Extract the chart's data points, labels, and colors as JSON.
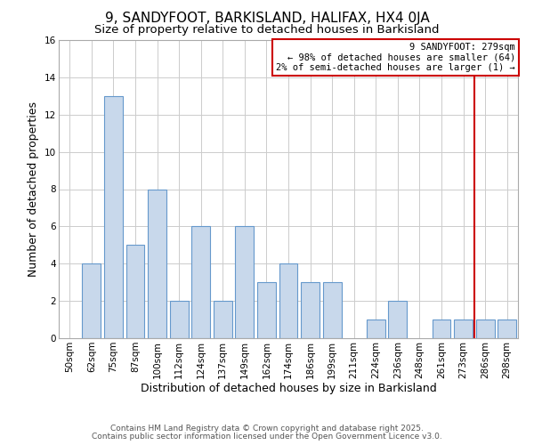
{
  "title": "9, SANDYFOOT, BARKISLAND, HALIFAX, HX4 0JA",
  "subtitle": "Size of property relative to detached houses in Barkisland",
  "xlabel": "Distribution of detached houses by size in Barkisland",
  "ylabel": "Number of detached properties",
  "bin_labels": [
    "50sqm",
    "62sqm",
    "75sqm",
    "87sqm",
    "100sqm",
    "112sqm",
    "124sqm",
    "137sqm",
    "149sqm",
    "162sqm",
    "174sqm",
    "186sqm",
    "199sqm",
    "211sqm",
    "224sqm",
    "236sqm",
    "248sqm",
    "261sqm",
    "273sqm",
    "286sqm",
    "298sqm"
  ],
  "bin_edges": [
    50,
    62,
    75,
    87,
    100,
    112,
    124,
    137,
    149,
    162,
    174,
    186,
    199,
    211,
    224,
    236,
    248,
    261,
    273,
    286,
    298,
    310
  ],
  "bar_heights": [
    0,
    4,
    13,
    5,
    8,
    2,
    6,
    2,
    6,
    3,
    4,
    3,
    3,
    0,
    1,
    2,
    0,
    1,
    1,
    1,
    1
  ],
  "bar_color": "#c8d8eb",
  "bar_edge_color": "#6699cc",
  "grid_color": "#cccccc",
  "bg_color": "#ffffff",
  "red_line_x": 279,
  "red_line_color": "#cc0000",
  "annotation_title": "9 SANDYFOOT: 279sqm",
  "annotation_line1": "← 98% of detached houses are smaller (64)",
  "annotation_line2": "2% of semi-detached houses are larger (1) →",
  "annotation_box_color": "#cc0000",
  "ylim": [
    0,
    16
  ],
  "yticks": [
    0,
    2,
    4,
    6,
    8,
    10,
    12,
    14,
    16
  ],
  "footnote1": "Contains HM Land Registry data © Crown copyright and database right 2025.",
  "footnote2": "Contains public sector information licensed under the Open Government Licence v3.0.",
  "title_fontsize": 11,
  "subtitle_fontsize": 9.5,
  "axis_label_fontsize": 9,
  "tick_fontsize": 7.5,
  "annotation_fontsize": 7.5,
  "footnote_fontsize": 6.5
}
